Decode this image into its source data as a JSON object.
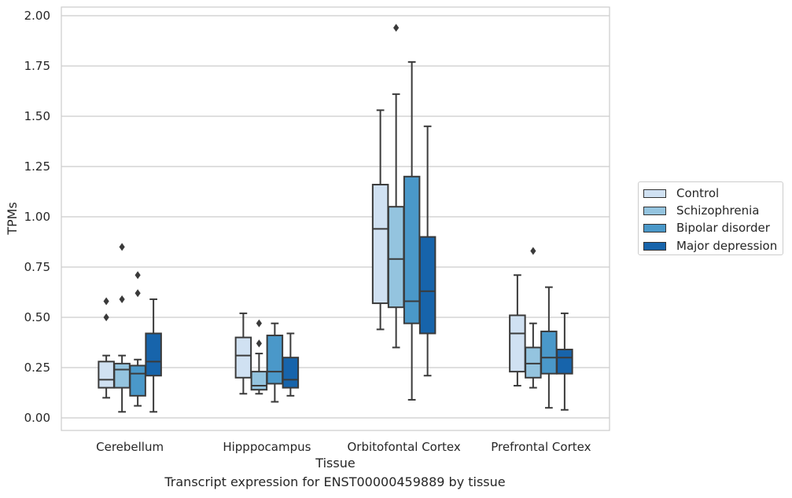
{
  "chart_data": {
    "type": "box",
    "title": "",
    "xlabel": "Tissue",
    "ylabel": "TPMs",
    "caption": "Transcript expression for ENST00000459889 by tissue",
    "ylim": [
      -0.06,
      2.04
    ],
    "yticks": [
      "0.00",
      "0.25",
      "0.50",
      "0.75",
      "1.00",
      "1.25",
      "1.50",
      "1.75",
      "2.00"
    ],
    "grid": true,
    "legend_position": "right",
    "categories": [
      "Cerebellum",
      "Hipppocampus",
      "Orbitofontal Cortex",
      "Prefrontal Cortex"
    ],
    "series": [
      {
        "name": "Control",
        "color": "#d0e1f2",
        "boxes": [
          {
            "whisker_low": 0.1,
            "q1": 0.15,
            "median": 0.19,
            "q3": 0.28,
            "whisker_high": 0.31,
            "outliers": [
              0.5,
              0.58
            ]
          },
          {
            "whisker_low": 0.12,
            "q1": 0.2,
            "median": 0.31,
            "q3": 0.4,
            "whisker_high": 0.52,
            "outliers": []
          },
          {
            "whisker_low": 0.44,
            "q1": 0.57,
            "median": 0.94,
            "q3": 1.16,
            "whisker_high": 1.53,
            "outliers": []
          },
          {
            "whisker_low": 0.16,
            "q1": 0.23,
            "median": 0.42,
            "q3": 0.51,
            "whisker_high": 0.71,
            "outliers": []
          }
        ]
      },
      {
        "name": "Schizophrenia",
        "color": "#94c4df",
        "boxes": [
          {
            "whisker_low": 0.03,
            "q1": 0.15,
            "median": 0.24,
            "q3": 0.27,
            "whisker_high": 0.31,
            "outliers": [
              0.59,
              0.85
            ]
          },
          {
            "whisker_low": 0.12,
            "q1": 0.14,
            "median": 0.16,
            "q3": 0.23,
            "whisker_high": 0.32,
            "outliers": [
              0.37,
              0.47
            ]
          },
          {
            "whisker_low": 0.35,
            "q1": 0.55,
            "median": 0.79,
            "q3": 1.05,
            "whisker_high": 1.61,
            "outliers": [
              1.94
            ]
          },
          {
            "whisker_low": 0.15,
            "q1": 0.2,
            "median": 0.27,
            "q3": 0.35,
            "whisker_high": 0.47,
            "outliers": [
              0.83
            ]
          }
        ]
      },
      {
        "name": "Bipolar disorder",
        "color": "#4a98c9",
        "boxes": [
          {
            "whisker_low": 0.06,
            "q1": 0.11,
            "median": 0.22,
            "q3": 0.26,
            "whisker_high": 0.29,
            "outliers": [
              0.62,
              0.71
            ]
          },
          {
            "whisker_low": 0.08,
            "q1": 0.17,
            "median": 0.23,
            "q3": 0.41,
            "whisker_high": 0.47,
            "outliers": []
          },
          {
            "whisker_low": 0.09,
            "q1": 0.47,
            "median": 0.58,
            "q3": 1.2,
            "whisker_high": 1.77,
            "outliers": []
          },
          {
            "whisker_low": 0.05,
            "q1": 0.22,
            "median": 0.3,
            "q3": 0.43,
            "whisker_high": 0.65,
            "outliers": []
          }
        ]
      },
      {
        "name": "Major depression",
        "color": "#1764ab",
        "boxes": [
          {
            "whisker_low": 0.03,
            "q1": 0.21,
            "median": 0.28,
            "q3": 0.42,
            "whisker_high": 0.59,
            "outliers": []
          },
          {
            "whisker_low": 0.11,
            "q1": 0.15,
            "median": 0.19,
            "q3": 0.3,
            "whisker_high": 0.42,
            "outliers": []
          },
          {
            "whisker_low": 0.21,
            "q1": 0.42,
            "median": 0.63,
            "q3": 0.9,
            "whisker_high": 1.45,
            "outliers": []
          },
          {
            "whisker_low": 0.04,
            "q1": 0.22,
            "median": 0.3,
            "q3": 0.34,
            "whisker_high": 0.52,
            "outliers": []
          }
        ]
      }
    ]
  }
}
